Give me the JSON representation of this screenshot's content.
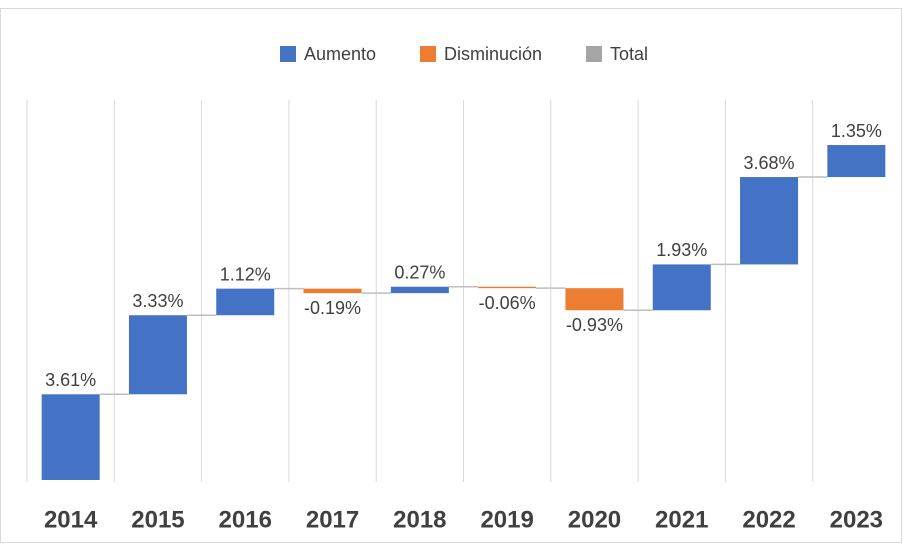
{
  "chart_data": {
    "type": "waterfall",
    "legend": [
      {
        "name": "Aumento",
        "color": "#4472c4"
      },
      {
        "name": "Disminución",
        "color": "#ed7d31"
      },
      {
        "name": "Total",
        "color": "#a5a5a5"
      }
    ],
    "categories": [
      "2014",
      "2015",
      "2016",
      "2017",
      "2018",
      "2019",
      "2020",
      "2021",
      "2022",
      "2023"
    ],
    "values": [
      3.61,
      3.33,
      1.12,
      -0.19,
      0.27,
      -0.06,
      -0.93,
      1.93,
      3.68,
      1.35
    ],
    "value_labels": [
      "3.61%",
      "3.33%",
      "1.12%",
      "-0.19%",
      "0.27%",
      "-0.06%",
      "-0.93%",
      "1.93%",
      "3.68%",
      "1.35%"
    ],
    "grid": true
  }
}
